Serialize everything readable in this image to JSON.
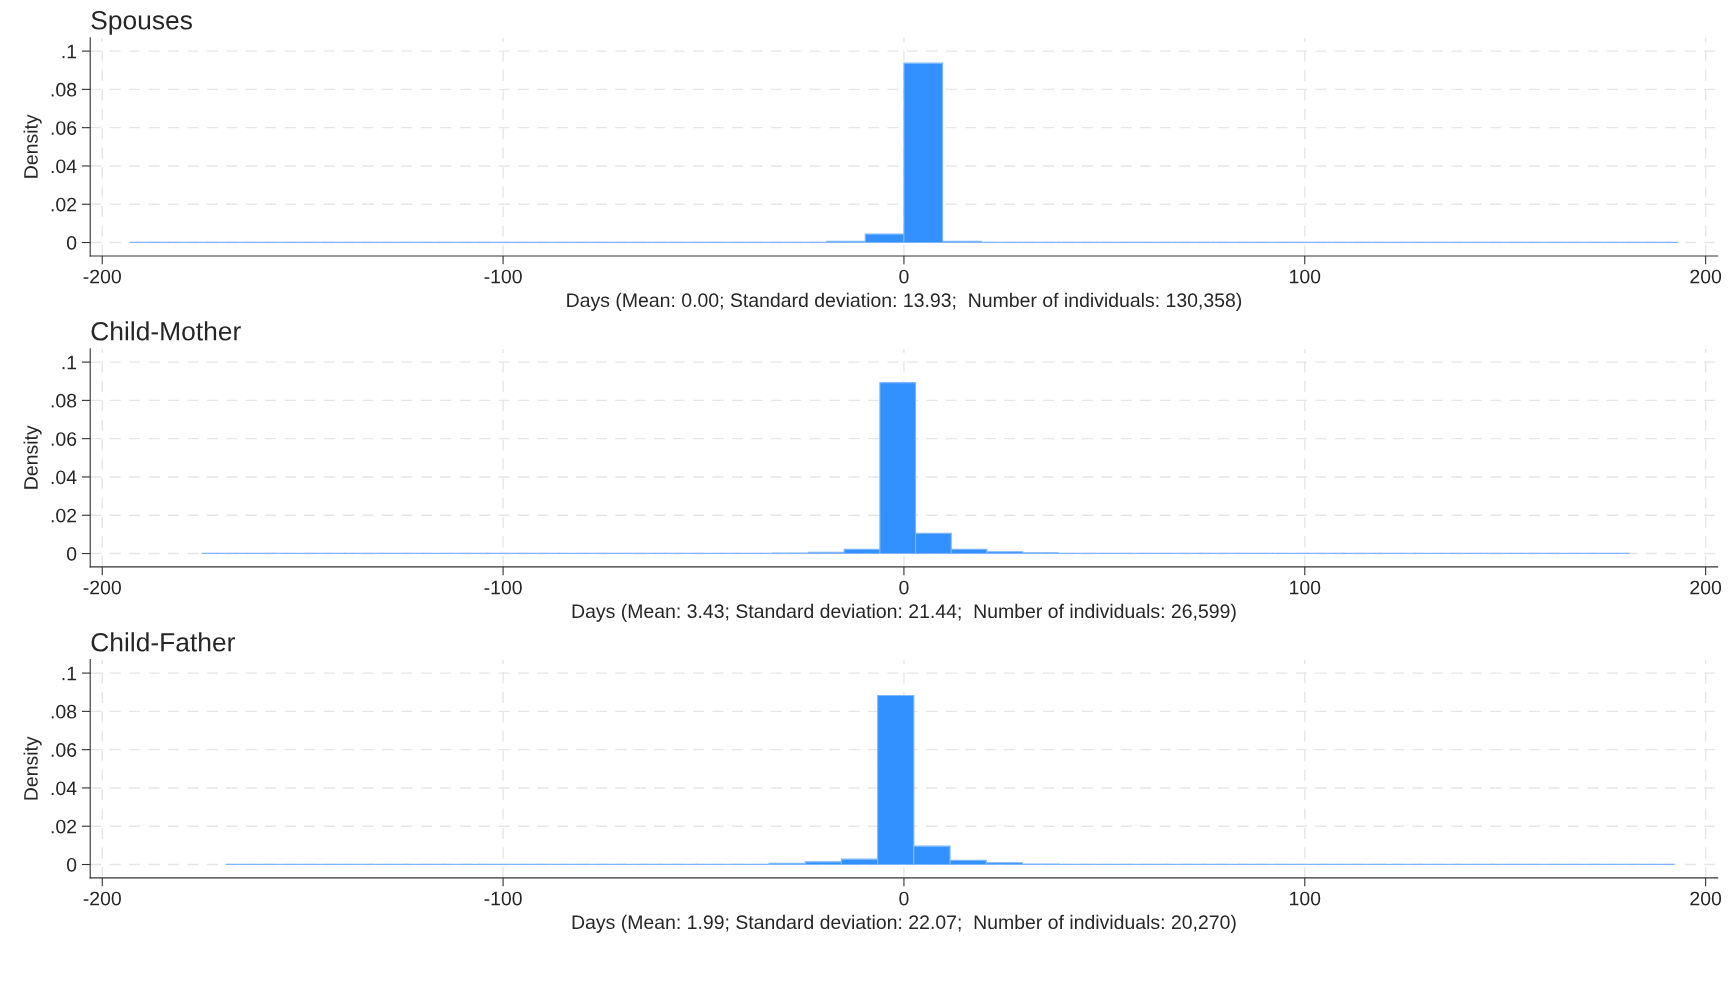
{
  "chart_data": [
    {
      "type": "histogram",
      "title": "Spouses",
      "xlabel": "Days (Mean: 0.00; Standard deviation: 13.93;  Number of individuals: 130,358)",
      "ylabel": "Density",
      "color": "#3391ff",
      "bins": [
        -193,
        -183.35,
        -173.7,
        -164.05,
        -154.4,
        -144.75,
        -135.1,
        -125.45,
        -115.8,
        -106.15,
        -96.5,
        -86.85,
        -77.2,
        -67.55,
        -57.9,
        -48.25,
        -38.6,
        -28.95,
        -19.3,
        -9.65,
        0,
        9.65,
        19.3,
        28.95,
        38.6,
        48.25,
        57.9,
        67.55,
        77.2,
        86.85,
        96.5,
        106.15,
        115.8,
        125.45,
        135.1,
        144.75,
        154.4,
        164.05,
        173.7,
        183.35,
        193
      ],
      "values": [
        0.0001,
        0.0001,
        0.0001,
        0.0001,
        0.0001,
        0.0001,
        0.0001,
        0.0001,
        0.0001,
        0.0001,
        0.0001,
        0.0001,
        0.0001,
        0.0001,
        0.0001,
        0.0001,
        0.0001,
        0.0001,
        0.0006,
        0.0044,
        0.0937,
        0.0006,
        0.0001,
        0.0001,
        0.0001,
        0.0001,
        0.0001,
        0.0001,
        0.0001,
        0.0001,
        0.0001,
        0.0001,
        0.0001,
        0.0001,
        0.0001,
        0.0001,
        0.0001,
        0.0001,
        0.0001,
        0.0001
      ],
      "xlim": [
        -203,
        203
      ],
      "ylim": [
        -0.007,
        0.107
      ],
      "xticks": [
        -200,
        -100,
        0,
        100,
        200
      ],
      "yticks": [
        0,
        {
          "value": 0.02,
          "label": ".02"
        },
        {
          "value": 0.04,
          "label": ".04"
        },
        {
          "value": 0.06,
          "label": ".06"
        },
        {
          "value": 0.08,
          "label": ".08"
        },
        {
          "value": 0.1,
          "label": ".1"
        }
      ],
      "grid": true
    },
    {
      "type": "histogram",
      "title": "Child-Mother",
      "xlabel": "Days (Mean: 3.43; Standard deviation: 21.44;  Number of individuals: 26,599)",
      "ylabel": "Density",
      "color": "#3391ff",
      "bins": [
        -175.1,
        -166.2,
        -157.3,
        -148.4,
        -139.5,
        -130.6,
        -121.7,
        -112.8,
        -103.9,
        -95,
        -86.1,
        -77.2,
        -68.3,
        -59.4,
        -50.5,
        -41.6,
        -32.7,
        -23.8,
        -14.9,
        -6,
        2.9,
        11.8,
        20.7,
        29.6,
        38.5,
        47.4,
        56.3,
        65.2,
        74.1,
        83,
        91.9,
        100.8,
        109.7,
        118.6,
        127.5,
        136.4,
        145.3,
        154.2,
        163.1,
        172,
        180.9
      ],
      "values": [
        0.0001,
        0.0001,
        0.0001,
        0.0001,
        0.0001,
        0.0001,
        0.0001,
        0.0001,
        0.0001,
        0.0001,
        0.0001,
        0.0001,
        0.0001,
        0.0001,
        0.0001,
        0.0001,
        0.0002,
        0.0006,
        0.0022,
        0.0893,
        0.0106,
        0.0022,
        0.0009,
        0.0004,
        0.0001,
        0.0001,
        0.0001,
        0.0001,
        0.0001,
        0.0001,
        0.0001,
        0.0001,
        0.0001,
        0.0001,
        0.0001,
        0.0001,
        0.0001,
        0.0001,
        0.0001,
        0.0001
      ],
      "xlim": [
        -203,
        203
      ],
      "ylim": [
        -0.007,
        0.107
      ],
      "xticks": [
        -200,
        -100,
        0,
        100,
        200
      ],
      "yticks": [
        0,
        {
          "value": 0.02,
          "label": ".02"
        },
        {
          "value": 0.04,
          "label": ".04"
        },
        {
          "value": 0.06,
          "label": ".06"
        },
        {
          "value": 0.08,
          "label": ".08"
        },
        {
          "value": 0.1,
          "label": ".1"
        }
      ],
      "grid": true
    },
    {
      "type": "histogram",
      "title": "Child-Father",
      "xlabel": "Days (Mean: 1.99; Standard deviation: 22.07;  Number of individuals: 20,270)",
      "ylabel": "Density",
      "color": "#3391ff",
      "bins": [
        -169.1,
        -160.07,
        -151.04,
        -142.01,
        -132.98,
        -123.95,
        -114.92,
        -105.89,
        -96.86,
        -87.83,
        -78.8,
        -69.77,
        -60.74,
        -51.71,
        -42.68,
        -33.65,
        -24.62,
        -15.59,
        -6.56,
        2.47,
        11.5,
        20.53,
        29.56,
        38.59,
        47.62,
        56.65,
        65.68,
        74.71,
        83.74,
        92.77,
        101.8,
        110.83,
        119.86,
        128.89,
        137.92,
        146.95,
        155.98,
        165.01,
        174.04,
        183.07,
        192.1
      ],
      "values": [
        0.0001,
        0.0001,
        0.0001,
        0.0001,
        0.0001,
        0.0001,
        0.0001,
        0.0001,
        0.0001,
        0.0001,
        0.0001,
        0.0001,
        0.0001,
        0.0001,
        0.0001,
        0.0006,
        0.0014,
        0.0028,
        0.0883,
        0.0096,
        0.0022,
        0.0009,
        0.0003,
        0.0001,
        0.0001,
        0.0001,
        0.0001,
        0.0001,
        0.0001,
        0.0001,
        0.0001,
        0.0001,
        0.0001,
        0.0001,
        0.0001,
        0.0001,
        0.0001,
        0.0001,
        0.0001,
        0.0001
      ],
      "xlim": [
        -203,
        203
      ],
      "ylim": [
        -0.007,
        0.107
      ],
      "xticks": [
        -200,
        -100,
        0,
        100,
        200
      ],
      "yticks": [
        0,
        {
          "value": 0.02,
          "label": ".02"
        },
        {
          "value": 0.04,
          "label": ".04"
        },
        {
          "value": 0.06,
          "label": ".06"
        },
        {
          "value": 0.08,
          "label": ".08"
        },
        {
          "value": 0.1,
          "label": ".1"
        }
      ],
      "grid": true
    }
  ]
}
